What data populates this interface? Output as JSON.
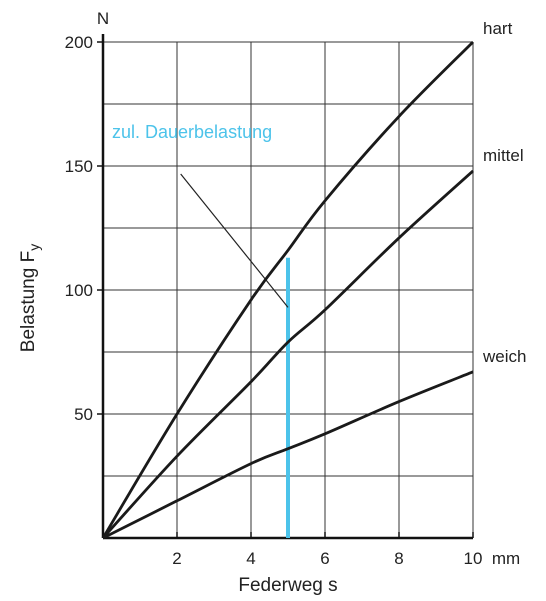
{
  "chart_data": {
    "type": "line",
    "title": "",
    "xlabel": "Federweg s",
    "ylabel": "Belastung F",
    "ylabel_sub": "y",
    "x_unit": "mm",
    "y_unit": "N",
    "xlim": [
      0,
      10
    ],
    "ylim": [
      0,
      200
    ],
    "grid": true,
    "x_ticks": [
      2,
      4,
      6,
      8,
      10
    ],
    "x_tick_labels": [
      "2",
      "4",
      "6",
      "8",
      "10"
    ],
    "y_ticks": [
      50,
      100,
      150,
      200
    ],
    "y_tick_labels": [
      "50",
      "100",
      "150",
      "200"
    ],
    "series": [
      {
        "name": "hart",
        "color": "#1a1a1a",
        "points": [
          [
            0,
            0
          ],
          [
            2,
            50
          ],
          [
            4,
            96
          ],
          [
            5,
            116
          ],
          [
            6,
            136
          ],
          [
            8,
            170
          ],
          [
            10,
            200
          ]
        ]
      },
      {
        "name": "mittel",
        "color": "#1a1a1a",
        "points": [
          [
            0,
            0
          ],
          [
            2,
            33
          ],
          [
            4,
            63
          ],
          [
            5,
            79
          ],
          [
            6,
            92
          ],
          [
            8,
            121
          ],
          [
            10,
            148
          ]
        ]
      },
      {
        "name": "weich",
        "color": "#1a1a1a",
        "points": [
          [
            0,
            0
          ],
          [
            2,
            15
          ],
          [
            4,
            30
          ],
          [
            5,
            36
          ],
          [
            6,
            42
          ],
          [
            8,
            55
          ],
          [
            10,
            67
          ]
        ]
      }
    ],
    "annotation": {
      "text": "zul. Dauerbelastung",
      "color": "#4cc3ea",
      "x": 5,
      "y_range": [
        0,
        113
      ],
      "pointer_from": [
        2.1,
        150
      ],
      "pointer_to": [
        5,
        93
      ]
    }
  }
}
